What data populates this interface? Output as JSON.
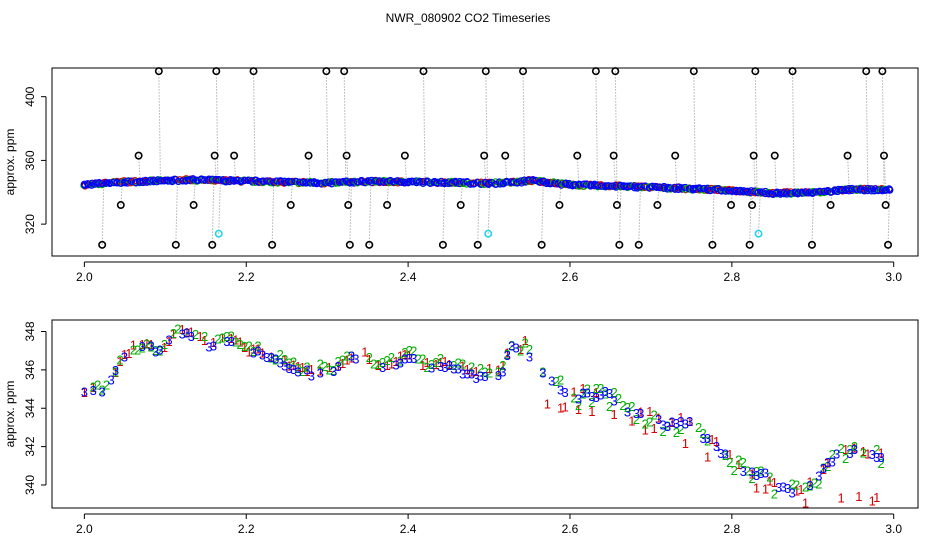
{
  "title": "NWR_080902  CO2 Timeseries",
  "colors": {
    "outlier": "#000000",
    "guide": "#b0b0b0",
    "cyan": "#22d3ee",
    "s1": "#d60000",
    "s2": "#00b000",
    "s3": "#0000ff"
  },
  "chart_data": [
    {
      "type": "scatter",
      "title": "",
      "xlabel": "",
      "ylabel": "approx. ppm",
      "xlim": [
        1.96,
        3.03
      ],
      "ylim": [
        300,
        418
      ],
      "xticks": [
        2.0,
        2.2,
        2.4,
        2.6,
        2.8,
        3.0
      ],
      "xtick_labels": [
        "2.0",
        "2.2",
        "2.4",
        "2.6",
        "2.8",
        "3.0"
      ],
      "yticks": [
        320,
        360,
        400
      ],
      "ytick_labels": [
        "320",
        "360",
        "400"
      ],
      "grid": false,
      "baseline": [
        [
          2.0,
          344.7
        ],
        [
          2.05,
          346.5
        ],
        [
          2.1,
          347.2
        ],
        [
          2.13,
          347.8
        ],
        [
          2.2,
          347.0
        ],
        [
          2.3,
          345.8
        ],
        [
          2.35,
          346.8
        ],
        [
          2.45,
          346.2
        ],
        [
          2.5,
          345.6
        ],
        [
          2.54,
          346.5
        ],
        [
          2.55,
          347.5
        ],
        [
          2.6,
          344.7
        ],
        [
          2.7,
          343.2
        ],
        [
          2.8,
          341.2
        ],
        [
          2.85,
          339.4
        ],
        [
          2.9,
          339.8
        ],
        [
          2.95,
          341.8
        ],
        [
          2.99,
          341.5
        ]
      ],
      "outliers_black": [
        [
          2.022,
          307
        ],
        [
          2.045,
          332
        ],
        [
          2.067,
          363
        ],
        [
          2.092,
          416
        ],
        [
          2.113,
          307
        ],
        [
          2.135,
          332
        ],
        [
          2.158,
          307
        ],
        [
          2.161,
          363
        ],
        [
          2.163,
          416
        ],
        [
          2.185,
          363
        ],
        [
          2.209,
          416
        ],
        [
          2.232,
          307
        ],
        [
          2.255,
          332
        ],
        [
          2.277,
          363
        ],
        [
          2.299,
          416
        ],
        [
          2.321,
          416
        ],
        [
          2.324,
          363
        ],
        [
          2.326,
          332
        ],
        [
          2.328,
          307
        ],
        [
          2.352,
          307
        ],
        [
          2.374,
          332
        ],
        [
          2.396,
          363
        ],
        [
          2.419,
          416
        ],
        [
          2.443,
          307
        ],
        [
          2.465,
          332
        ],
        [
          2.486,
          307
        ],
        [
          2.494,
          363
        ],
        [
          2.496,
          416
        ],
        [
          2.52,
          363
        ],
        [
          2.542,
          416
        ],
        [
          2.565,
          307
        ],
        [
          2.587,
          332
        ],
        [
          2.609,
          363
        ],
        [
          2.632,
          416
        ],
        [
          2.654,
          363
        ],
        [
          2.656,
          416
        ],
        [
          2.658,
          332
        ],
        [
          2.661,
          307
        ],
        [
          2.685,
          307
        ],
        [
          2.708,
          332
        ],
        [
          2.73,
          363
        ],
        [
          2.753,
          416
        ],
        [
          2.776,
          307
        ],
        [
          2.799,
          332
        ],
        [
          2.822,
          307
        ],
        [
          2.825,
          332
        ],
        [
          2.827,
          363
        ],
        [
          2.829,
          416
        ],
        [
          2.853,
          363
        ],
        [
          2.875,
          416
        ],
        [
          2.899,
          307
        ],
        [
          2.922,
          332
        ],
        [
          2.943,
          363
        ],
        [
          2.966,
          416
        ],
        [
          2.986,
          416
        ],
        [
          2.988,
          363
        ],
        [
          2.99,
          332
        ],
        [
          2.993,
          307
        ]
      ],
      "outliers_cyan": [
        [
          2.166,
          314
        ],
        [
          2.499,
          314
        ],
        [
          2.833,
          314
        ]
      ]
    },
    {
      "type": "scatter",
      "title": "",
      "xlabel": "",
      "ylabel": "approx. ppm",
      "xlim": [
        1.96,
        3.03
      ],
      "ylim": [
        338.8,
        348.6
      ],
      "xticks": [
        2.0,
        2.2,
        2.4,
        2.6,
        2.8,
        3.0
      ],
      "xtick_labels": [
        "2.0",
        "2.2",
        "2.4",
        "2.6",
        "2.8",
        "3.0"
      ],
      "yticks": [
        340,
        342,
        344,
        346,
        348
      ],
      "ytick_labels": [
        "340",
        "342",
        "344",
        "346",
        "348"
      ],
      "grid": false,
      "marker_labels": [
        "1",
        "2",
        "3"
      ],
      "series_colors": [
        "#d60000",
        "#00b000",
        "#0000ff"
      ],
      "trend": [
        [
          2.0,
          344.8
        ],
        [
          2.01,
          344.8
        ],
        [
          2.02,
          344.9
        ],
        [
          2.03,
          345.2
        ],
        [
          2.04,
          346.0
        ],
        [
          2.05,
          346.6
        ],
        [
          2.06,
          347.0
        ],
        [
          2.07,
          347.1
        ],
        [
          2.08,
          347.3
        ],
        [
          2.09,
          346.8
        ],
        [
          2.1,
          347.1
        ],
        [
          2.11,
          347.8
        ],
        [
          2.12,
          348.0
        ],
        [
          2.13,
          347.8
        ],
        [
          2.14,
          347.5
        ],
        [
          2.15,
          347.4
        ],
        [
          2.16,
          347.1
        ],
        [
          2.17,
          347.4
        ],
        [
          2.18,
          347.4
        ],
        [
          2.19,
          347.2
        ],
        [
          2.2,
          347.0
        ],
        [
          2.21,
          346.9
        ],
        [
          2.22,
          346.8
        ],
        [
          2.23,
          346.6
        ],
        [
          2.24,
          346.5
        ],
        [
          2.25,
          346.1
        ],
        [
          2.26,
          346.0
        ],
        [
          2.27,
          345.9
        ],
        [
          2.28,
          345.8
        ],
        [
          2.29,
          345.9
        ],
        [
          2.3,
          345.9
        ],
        [
          2.31,
          346.0
        ],
        [
          2.32,
          346.3
        ],
        [
          2.33,
          346.6
        ],
        [
          2.34,
          346.8
        ],
        [
          2.35,
          346.6
        ],
        [
          2.36,
          346.1
        ],
        [
          2.37,
          346.0
        ],
        [
          2.38,
          346.3
        ],
        [
          2.39,
          346.4
        ],
        [
          2.4,
          346.7
        ],
        [
          2.41,
          346.6
        ],
        [
          2.42,
          346.1
        ],
        [
          2.43,
          346.2
        ],
        [
          2.44,
          346.3
        ],
        [
          2.45,
          346.2
        ],
        [
          2.46,
          346.0
        ],
        [
          2.47,
          345.9
        ],
        [
          2.48,
          345.7
        ],
        [
          2.49,
          345.7
        ],
        [
          2.5,
          345.8
        ],
        [
          2.51,
          345.7
        ],
        [
          2.52,
          346.0
        ],
        [
          2.525,
          347.4
        ],
        [
          2.53,
          347.0
        ],
        [
          2.54,
          347.0
        ],
        [
          2.545,
          347.3
        ],
        [
          2.55,
          346.8
        ],
        [
          2.56,
          346.3
        ],
        [
          2.57,
          345.6
        ],
        [
          2.58,
          345.3
        ],
        [
          2.59,
          345.0
        ],
        [
          2.6,
          344.8
        ],
        [
          2.61,
          344.6
        ],
        [
          2.62,
          344.8
        ],
        [
          2.63,
          344.6
        ],
        [
          2.64,
          344.8
        ],
        [
          2.65,
          344.6
        ],
        [
          2.66,
          344.2
        ],
        [
          2.67,
          343.9
        ],
        [
          2.68,
          343.8
        ],
        [
          2.69,
          343.7
        ],
        [
          2.7,
          343.6
        ],
        [
          2.71,
          343.3
        ],
        [
          2.72,
          343.2
        ],
        [
          2.73,
          343.1
        ],
        [
          2.74,
          343.3
        ],
        [
          2.75,
          343.3
        ],
        [
          2.76,
          342.6
        ],
        [
          2.77,
          342.3
        ],
        [
          2.78,
          342.0
        ],
        [
          2.79,
          341.6
        ],
        [
          2.8,
          341.3
        ],
        [
          2.81,
          341.0
        ],
        [
          2.82,
          340.6
        ],
        [
          2.83,
          340.5
        ],
        [
          2.84,
          340.6
        ],
        [
          2.85,
          340.0
        ],
        [
          2.86,
          339.9
        ],
        [
          2.87,
          339.7
        ],
        [
          2.88,
          339.6
        ],
        [
          2.89,
          339.7
        ],
        [
          2.9,
          340.1
        ],
        [
          2.91,
          340.6
        ],
        [
          2.92,
          341.2
        ],
        [
          2.93,
          341.5
        ],
        [
          2.94,
          341.6
        ],
        [
          2.95,
          341.8
        ],
        [
          2.96,
          341.7
        ],
        [
          2.97,
          341.6
        ],
        [
          2.98,
          341.5
        ],
        [
          2.985,
          341.5
        ]
      ],
      "series1_low": [
        [
          2.58,
          344.2
        ],
        [
          2.6,
          344.1
        ],
        [
          2.64,
          343.9
        ],
        [
          2.66,
          343.5
        ],
        [
          2.7,
          342.9
        ],
        [
          2.74,
          342.3
        ],
        [
          2.78,
          341.3
        ],
        [
          2.8,
          340.9
        ],
        [
          2.82,
          340.2
        ],
        [
          2.84,
          339.8
        ],
        [
          2.86,
          339.3
        ],
        [
          2.88,
          339.0
        ],
        [
          2.9,
          339.3
        ]
      ]
    }
  ]
}
